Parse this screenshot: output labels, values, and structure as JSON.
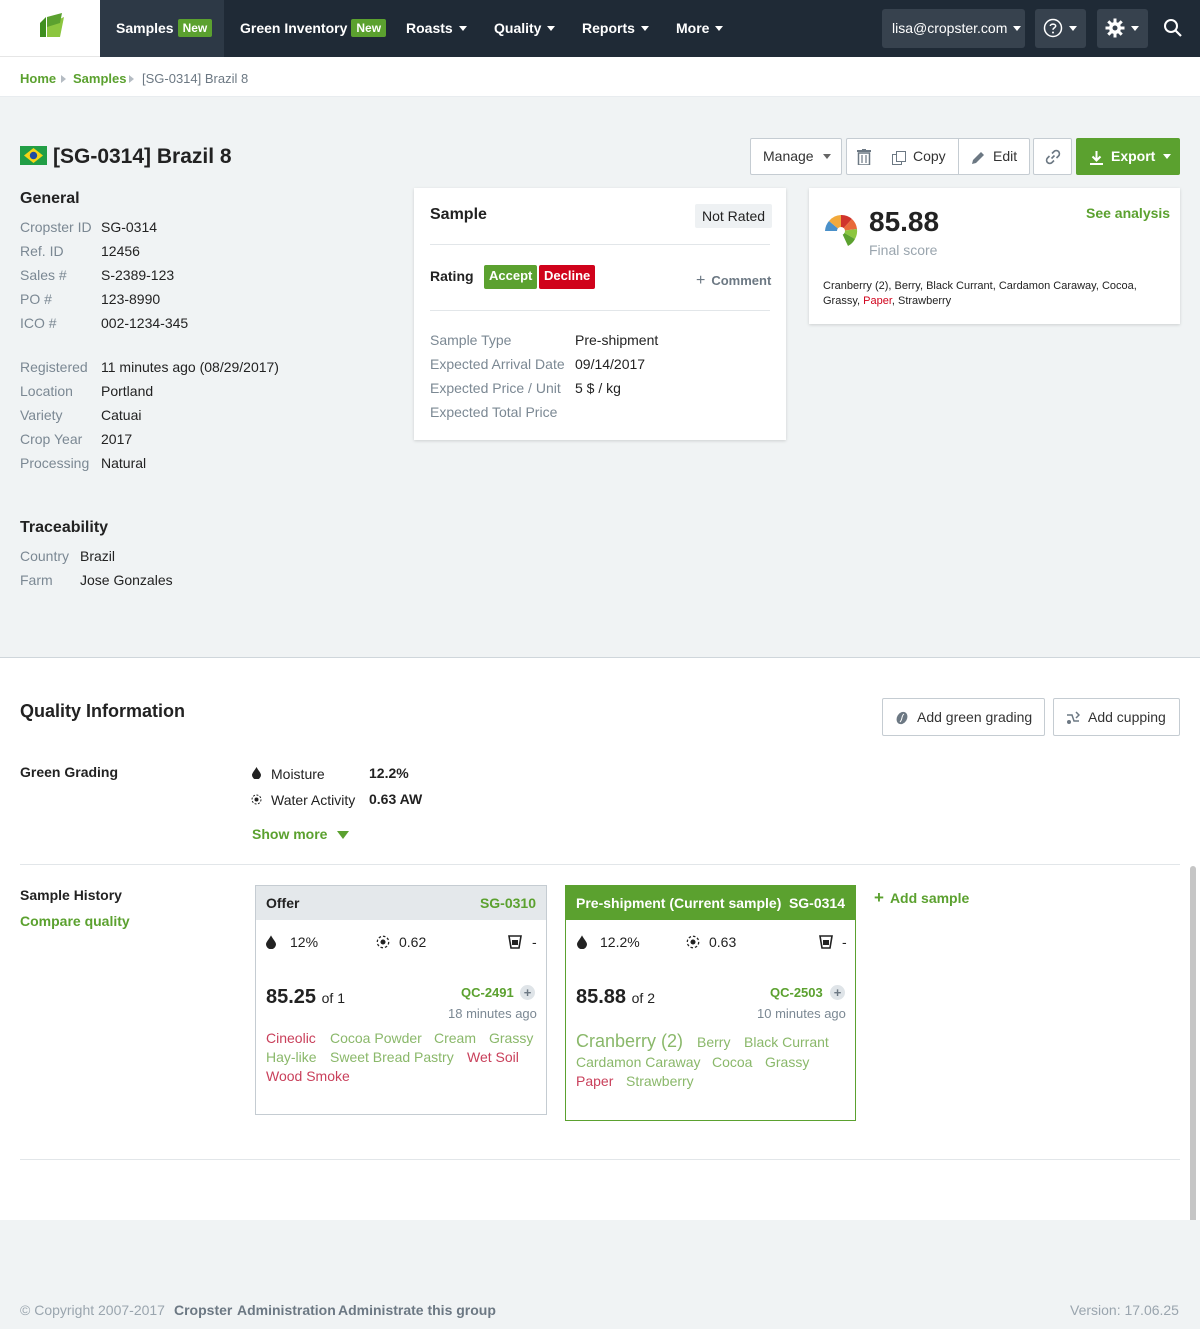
{
  "nav": {
    "items": [
      {
        "label": "Samples",
        "badge": "New"
      },
      {
        "label": "Green Inventory",
        "badge": "New"
      },
      {
        "label": "Roasts"
      },
      {
        "label": "Quality"
      },
      {
        "label": "Reports"
      },
      {
        "label": "More"
      }
    ],
    "user_email": "lisa@cropster.com",
    "icons": [
      "leaf-logo-icon",
      "help-icon",
      "gear-icon",
      "search-icon"
    ]
  },
  "breadcrumb": [
    "Home",
    "Samples",
    "[SG-0314] Brazil 8"
  ],
  "page": {
    "title": "[SG-0314] Brazil 8",
    "flag": "brazil-flag-icon"
  },
  "toolbar": {
    "manage": "Manage",
    "copy": "Copy",
    "edit": "Edit",
    "export": "Export"
  },
  "general": {
    "heading": "General",
    "rows1": [
      {
        "label": "Cropster ID",
        "value": "SG-0314"
      },
      {
        "label": "Ref. ID",
        "value": "12456"
      },
      {
        "label": "Sales #",
        "value": "S-2389-123"
      },
      {
        "label": "PO #",
        "value": "123-8990"
      },
      {
        "label": "ICO #",
        "value": "002-1234-345"
      }
    ],
    "rows2": [
      {
        "label": "Registered",
        "value": "11 minutes ago (08/29/2017)"
      },
      {
        "label": "Location",
        "value": "Portland"
      },
      {
        "label": "Variety",
        "value": "Catuai"
      },
      {
        "label": "Crop Year",
        "value": "2017"
      },
      {
        "label": "Processing",
        "value": "Natural"
      }
    ]
  },
  "traceability": {
    "heading": "Traceability",
    "rows": [
      {
        "label": "Country",
        "value": "Brazil"
      },
      {
        "label": "Farm",
        "value": "Jose Gonzales"
      }
    ]
  },
  "sample_card": {
    "title": "Sample",
    "status": "Not Rated",
    "rating_label": "Rating",
    "accept": "Accept",
    "decline": "Decline",
    "comment": "Comment",
    "rows": [
      {
        "label": "Sample Type",
        "value": "Pre-shipment"
      },
      {
        "label": "Expected Arrival Date",
        "value": "09/14/2017"
      },
      {
        "label": "Expected Price / Unit",
        "value": "5 $ / kg"
      },
      {
        "label": "Expected Total Price",
        "value": ""
      }
    ]
  },
  "score_card": {
    "score": "85.88",
    "caption": "Final score",
    "link": "See analysis",
    "flavors_line1": "Cranberry (2), Berry, Black Currant, Cardamon Caraway, Cocoa,",
    "flavors_line2a": "Grassy,",
    "flavors_line2b": "Paper",
    "flavors_line2c": ", Strawberry"
  },
  "quality": {
    "heading": "Quality Information",
    "add_green_grading": "Add green grading",
    "add_cupping": "Add cupping",
    "green_grading_label": "Green Grading",
    "moisture_label": "Moisture",
    "moisture_value": "12.2%",
    "water_activity_label": "Water Activity",
    "water_activity_value": "0.63 AW",
    "show_more": "Show more"
  },
  "history": {
    "label": "Sample History",
    "compare": "Compare quality",
    "add_sample": "Add sample",
    "cards": [
      {
        "title": "Offer",
        "id": "SG-0310",
        "moisture": "12%",
        "water_activity": "0.62",
        "density": "-",
        "score": "85.25",
        "of": "of 1",
        "qc": "QC-2491",
        "ago": "18 minutes ago",
        "flavors": [
          [
            {
              "t": "Cineolic",
              "c": "red"
            },
            {
              "t": "Cocoa Powder",
              "c": "green"
            },
            {
              "t": "Cream",
              "c": "green"
            },
            {
              "t": "Grassy",
              "c": "green"
            }
          ],
          [
            {
              "t": "Hay-like",
              "c": "green"
            },
            {
              "t": "Sweet Bread Pastry",
              "c": "green"
            },
            {
              "t": "Wet Soil",
              "c": "red"
            }
          ],
          [
            {
              "t": "Wood Smoke",
              "c": "red"
            }
          ]
        ]
      },
      {
        "title": "Pre-shipment (Current sample)",
        "id": "SG-0314",
        "moisture": "12.2%",
        "water_activity": "0.63",
        "density": "-",
        "score": "85.88",
        "of": "of 2",
        "qc": "QC-2503",
        "ago": "10 minutes ago",
        "flavors": [
          [
            {
              "t": "Cranberry (2)",
              "c": "green",
              "big": true
            },
            {
              "t": "Berry",
              "c": "green"
            },
            {
              "t": "Black Currant",
              "c": "green"
            }
          ],
          [
            {
              "t": "Cardamon Caraway",
              "c": "green"
            },
            {
              "t": "Cocoa",
              "c": "green"
            },
            {
              "t": "Grassy",
              "c": "green"
            }
          ],
          [
            {
              "t": "Paper",
              "c": "red"
            },
            {
              "t": "Strawberry",
              "c": "green"
            }
          ]
        ]
      }
    ]
  },
  "footer": {
    "copyright": "© Copyright 2007-2017",
    "link1": "Cropster",
    "link2": "Administration",
    "link3": "Administrate this group",
    "version": "Version: 17.06.25"
  },
  "colors": {
    "nav_bg": "#1f2a36",
    "accent_green": "#5ba12f",
    "decline_red": "#d0021b",
    "negative_flavor": "#c9405b",
    "positive_flavor": "#8ab86a"
  }
}
